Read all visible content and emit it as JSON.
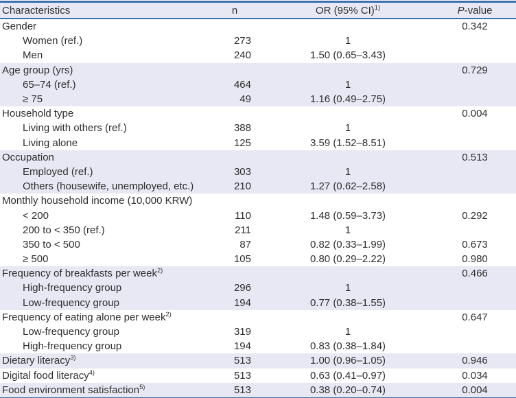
{
  "colors": {
    "band": "#e7e8f3",
    "header_bg": "#e7e8f3",
    "border_blue": "#3a70ab",
    "text": "#2e2e2e"
  },
  "table": {
    "columns": [
      {
        "label": "Characteristics"
      },
      {
        "label": "n"
      },
      {
        "label": "OR (95% CI)",
        "sup": "1)"
      },
      {
        "label_italic": "P",
        "label": "-value"
      }
    ],
    "rows": [
      {
        "label": "Gender",
        "indent": 0,
        "n": "",
        "or": "",
        "p": "0.342",
        "shaded": false
      },
      {
        "label": "Women (ref.)",
        "indent": 1,
        "n": "273",
        "or": "1",
        "p": "",
        "shaded": false
      },
      {
        "label": "Men",
        "indent": 1,
        "n": "240",
        "or": "1.50 (0.65–3.43)",
        "p": "",
        "shaded": false
      },
      {
        "label": "Age group (yrs)",
        "indent": 0,
        "n": "",
        "or": "",
        "p": "0.729",
        "shaded": true
      },
      {
        "label": "65–74 (ref.)",
        "indent": 1,
        "n": "464",
        "or": "1",
        "p": "",
        "shaded": true
      },
      {
        "label": "≥ 75",
        "indent": 1,
        "n": "49",
        "or": "1.16 (0.49–2.75)",
        "p": "",
        "shaded": true
      },
      {
        "label": "Household type",
        "indent": 0,
        "n": "",
        "or": "",
        "p": "0.004",
        "shaded": false
      },
      {
        "label": "Living with others (ref.)",
        "indent": 1,
        "n": "388",
        "or": "1",
        "p": "",
        "shaded": false
      },
      {
        "label": "Living alone",
        "indent": 1,
        "n": "125",
        "or": "3.59 (1.52–8.51)",
        "p": "",
        "shaded": false
      },
      {
        "label": "Occupation",
        "indent": 0,
        "n": "",
        "or": "",
        "p": "0.513",
        "shaded": true
      },
      {
        "label": "Employed (ref.)",
        "indent": 1,
        "n": "303",
        "or": "1",
        "p": "",
        "shaded": true
      },
      {
        "label": "Others (housewife, unemployed, etc.)",
        "indent": 1,
        "n": "210",
        "or": "1.27 (0.62–2.58)",
        "p": "",
        "shaded": true
      },
      {
        "label": "Monthly household income (10,000 KRW)",
        "indent": 0,
        "n": "",
        "or": "",
        "p": "",
        "shaded": false
      },
      {
        "label": "< 200",
        "indent": 1,
        "n": "110",
        "or": "1.48 (0.59–3.73)",
        "p": "0.292",
        "shaded": false
      },
      {
        "label": "200 to < 350 (ref.)",
        "indent": 1,
        "n": "211",
        "or": "1",
        "p": "",
        "shaded": false
      },
      {
        "label": "350 to < 500",
        "indent": 1,
        "n": "87",
        "or": "0.82 (0.33–1.99)",
        "p": "0.673",
        "shaded": false
      },
      {
        "label": "≥ 500",
        "indent": 1,
        "n": "105",
        "or": "0.80 (0.29–2.22)",
        "p": "0.980",
        "shaded": false
      },
      {
        "label": "Frequency of breakfasts per week",
        "sup": "2)",
        "indent": 0,
        "n": "",
        "or": "",
        "p": "0.466",
        "shaded": true
      },
      {
        "label": "High-frequency group",
        "indent": 1,
        "n": "296",
        "or": "1",
        "p": "",
        "shaded": true
      },
      {
        "label": "Low-frequency group",
        "indent": 1,
        "n": "194",
        "or": "0.77 (0.38–1.55)",
        "p": "",
        "shaded": true
      },
      {
        "label": "Frequency of eating alone per week",
        "sup": "2)",
        "indent": 0,
        "n": "",
        "or": "",
        "p": "0.647",
        "shaded": false
      },
      {
        "label": "Low-frequency group",
        "indent": 1,
        "n": "319",
        "or": "1",
        "p": "",
        "shaded": false
      },
      {
        "label": "High-frequency group",
        "indent": 1,
        "n": "194",
        "or": "0.83 (0.38–1.84)",
        "p": "",
        "shaded": false
      },
      {
        "label": "Dietary literacy",
        "sup": "3)",
        "indent": 0,
        "n": "513",
        "or": "1.00 (0.96–1.05)",
        "p": "0.946",
        "shaded": true
      },
      {
        "label": "Digital food literacy",
        "sup": "4)",
        "indent": 0,
        "n": "513",
        "or": "0.63 (0.41–0.97)",
        "p": "0.034",
        "shaded": false
      },
      {
        "label": "Food environment satisfaction",
        "sup": "5)",
        "indent": 0,
        "n": "513",
        "or": "0.38 (0.20–0.74)",
        "p": "0.004",
        "shaded": true
      }
    ]
  }
}
